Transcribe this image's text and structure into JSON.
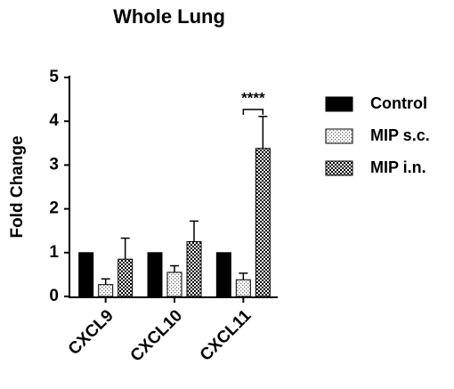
{
  "chart_data": {
    "type": "bar",
    "title": "Whole Lung",
    "y_label": "Fold Change",
    "categories": [
      "CXCL9",
      "CXCL10",
      "CXCL11"
    ],
    "series": [
      {
        "name": "Control",
        "color": "#000000",
        "pattern": "solid",
        "values": [
          1,
          1,
          1
        ]
      },
      {
        "name": "MIP s.c.",
        "color": "#000000",
        "pattern": "dots",
        "values": [
          0.27,
          0.55,
          0.38
        ],
        "errors": [
          0.13,
          0.15,
          0.15
        ]
      },
      {
        "name": "MIP i.n.",
        "color": "#000000",
        "pattern": "checker",
        "values": [
          0.85,
          1.25,
          3.38
        ],
        "errors": [
          0.48,
          0.47,
          0.73
        ]
      }
    ],
    "ylim": [
      0,
      5
    ],
    "yticks": [
      0,
      1,
      2,
      3,
      4,
      5
    ],
    "annotation": "****"
  }
}
